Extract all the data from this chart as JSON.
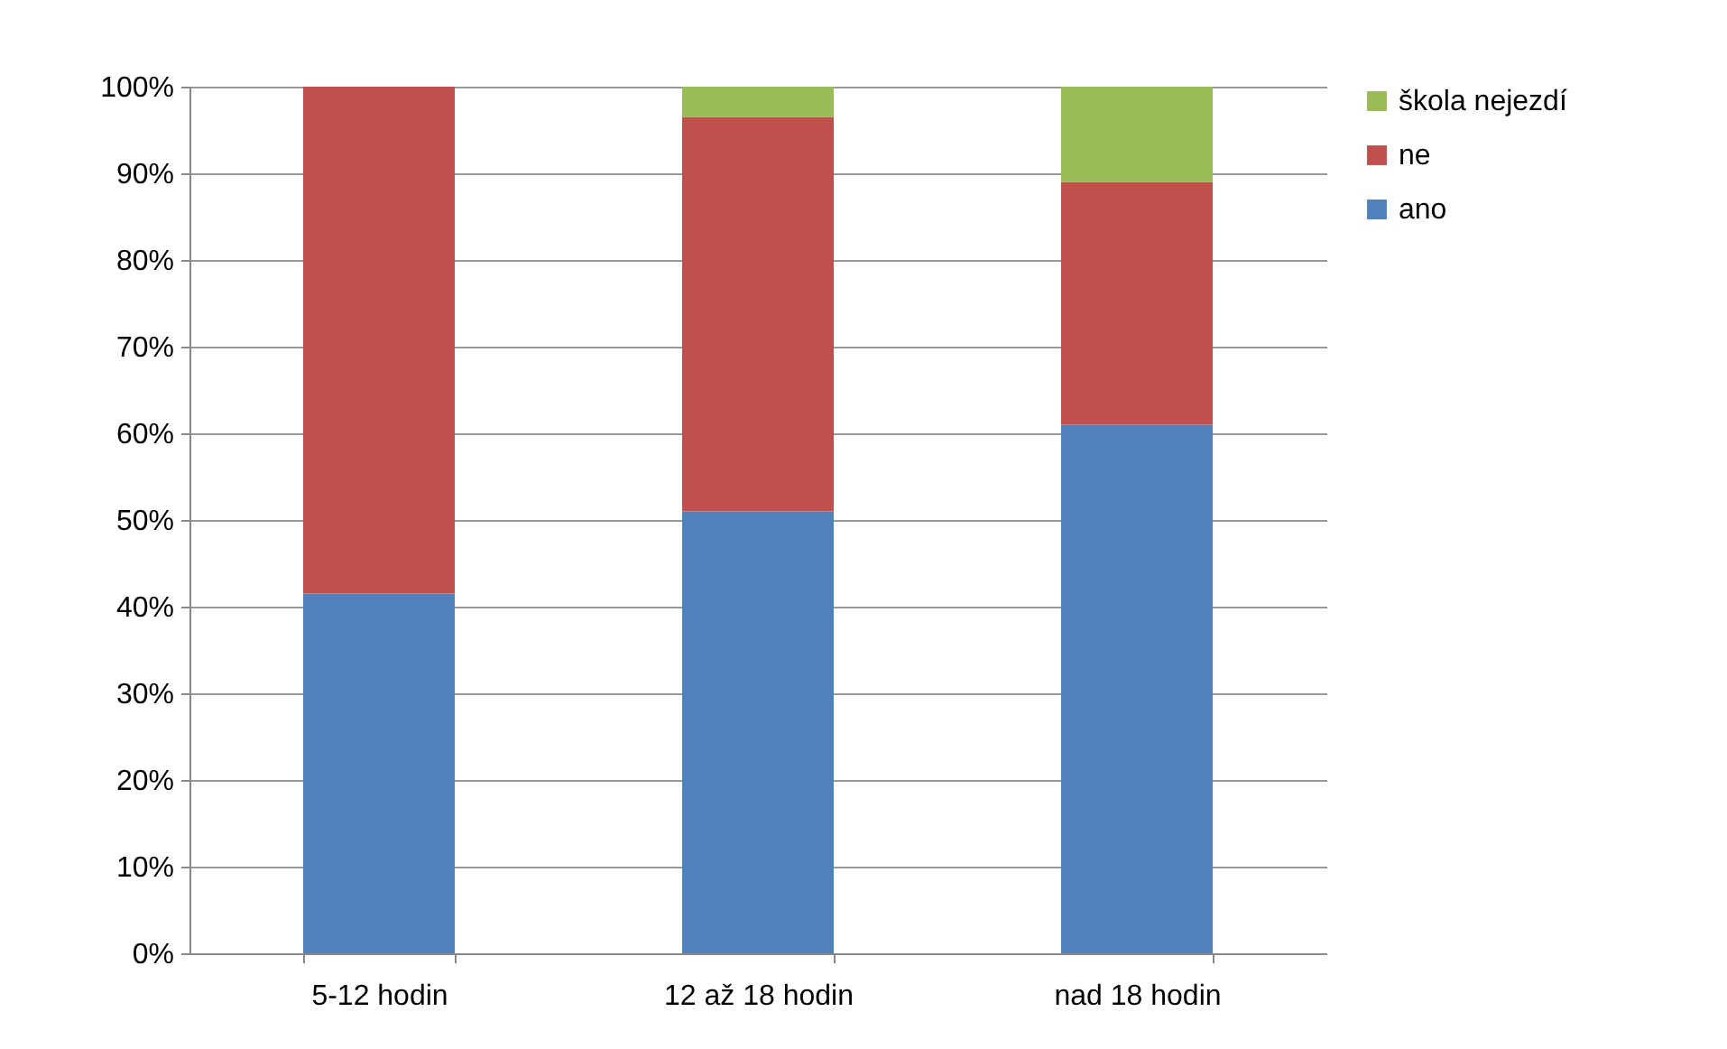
{
  "chart_data": {
    "type": "bar",
    "stacked": true,
    "categories": [
      "5-12 hodin",
      "12 až 18 hodin",
      "nad 18 hodin"
    ],
    "series": [
      {
        "name": "ano",
        "color": "#4f81bd",
        "values": [
          41.5,
          51,
          61
        ]
      },
      {
        "name": "ne",
        "color": "#c0504d",
        "values": [
          58.5,
          45.5,
          28
        ]
      },
      {
        "name": "škola nejezdí",
        "color": "#9bbb59",
        "values": [
          0,
          3.5,
          11
        ]
      }
    ],
    "ylim": [
      0,
      100
    ],
    "yticks": [
      {
        "value": 0,
        "label": "0%"
      },
      {
        "value": 10,
        "label": "10%"
      },
      {
        "value": 20,
        "label": "20%"
      },
      {
        "value": 30,
        "label": "30%"
      },
      {
        "value": 40,
        "label": "40%"
      },
      {
        "value": 50,
        "label": "50%"
      },
      {
        "value": 60,
        "label": "60%"
      },
      {
        "value": 70,
        "label": "70%"
      },
      {
        "value": 80,
        "label": "80%"
      },
      {
        "value": 90,
        "label": "90%"
      },
      {
        "value": 100,
        "label": "100%"
      }
    ],
    "grid": "y",
    "legend": "right"
  }
}
